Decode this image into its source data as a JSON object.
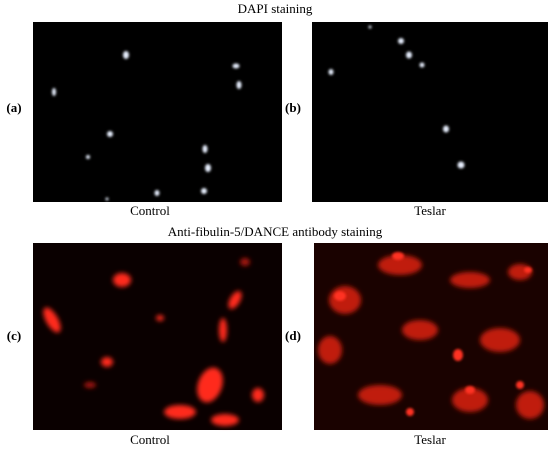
{
  "figure": {
    "top_title": "DAPI staining",
    "bottom_title": "Anti-fibulin-5/DANCE antibody staining",
    "panels": [
      {
        "label": "(a)",
        "caption": "Control"
      },
      {
        "label": "(b)",
        "caption": "Teslar"
      },
      {
        "label": "(c)",
        "caption": "Control"
      },
      {
        "label": "(d)",
        "caption": "Teslar"
      }
    ]
  }
}
